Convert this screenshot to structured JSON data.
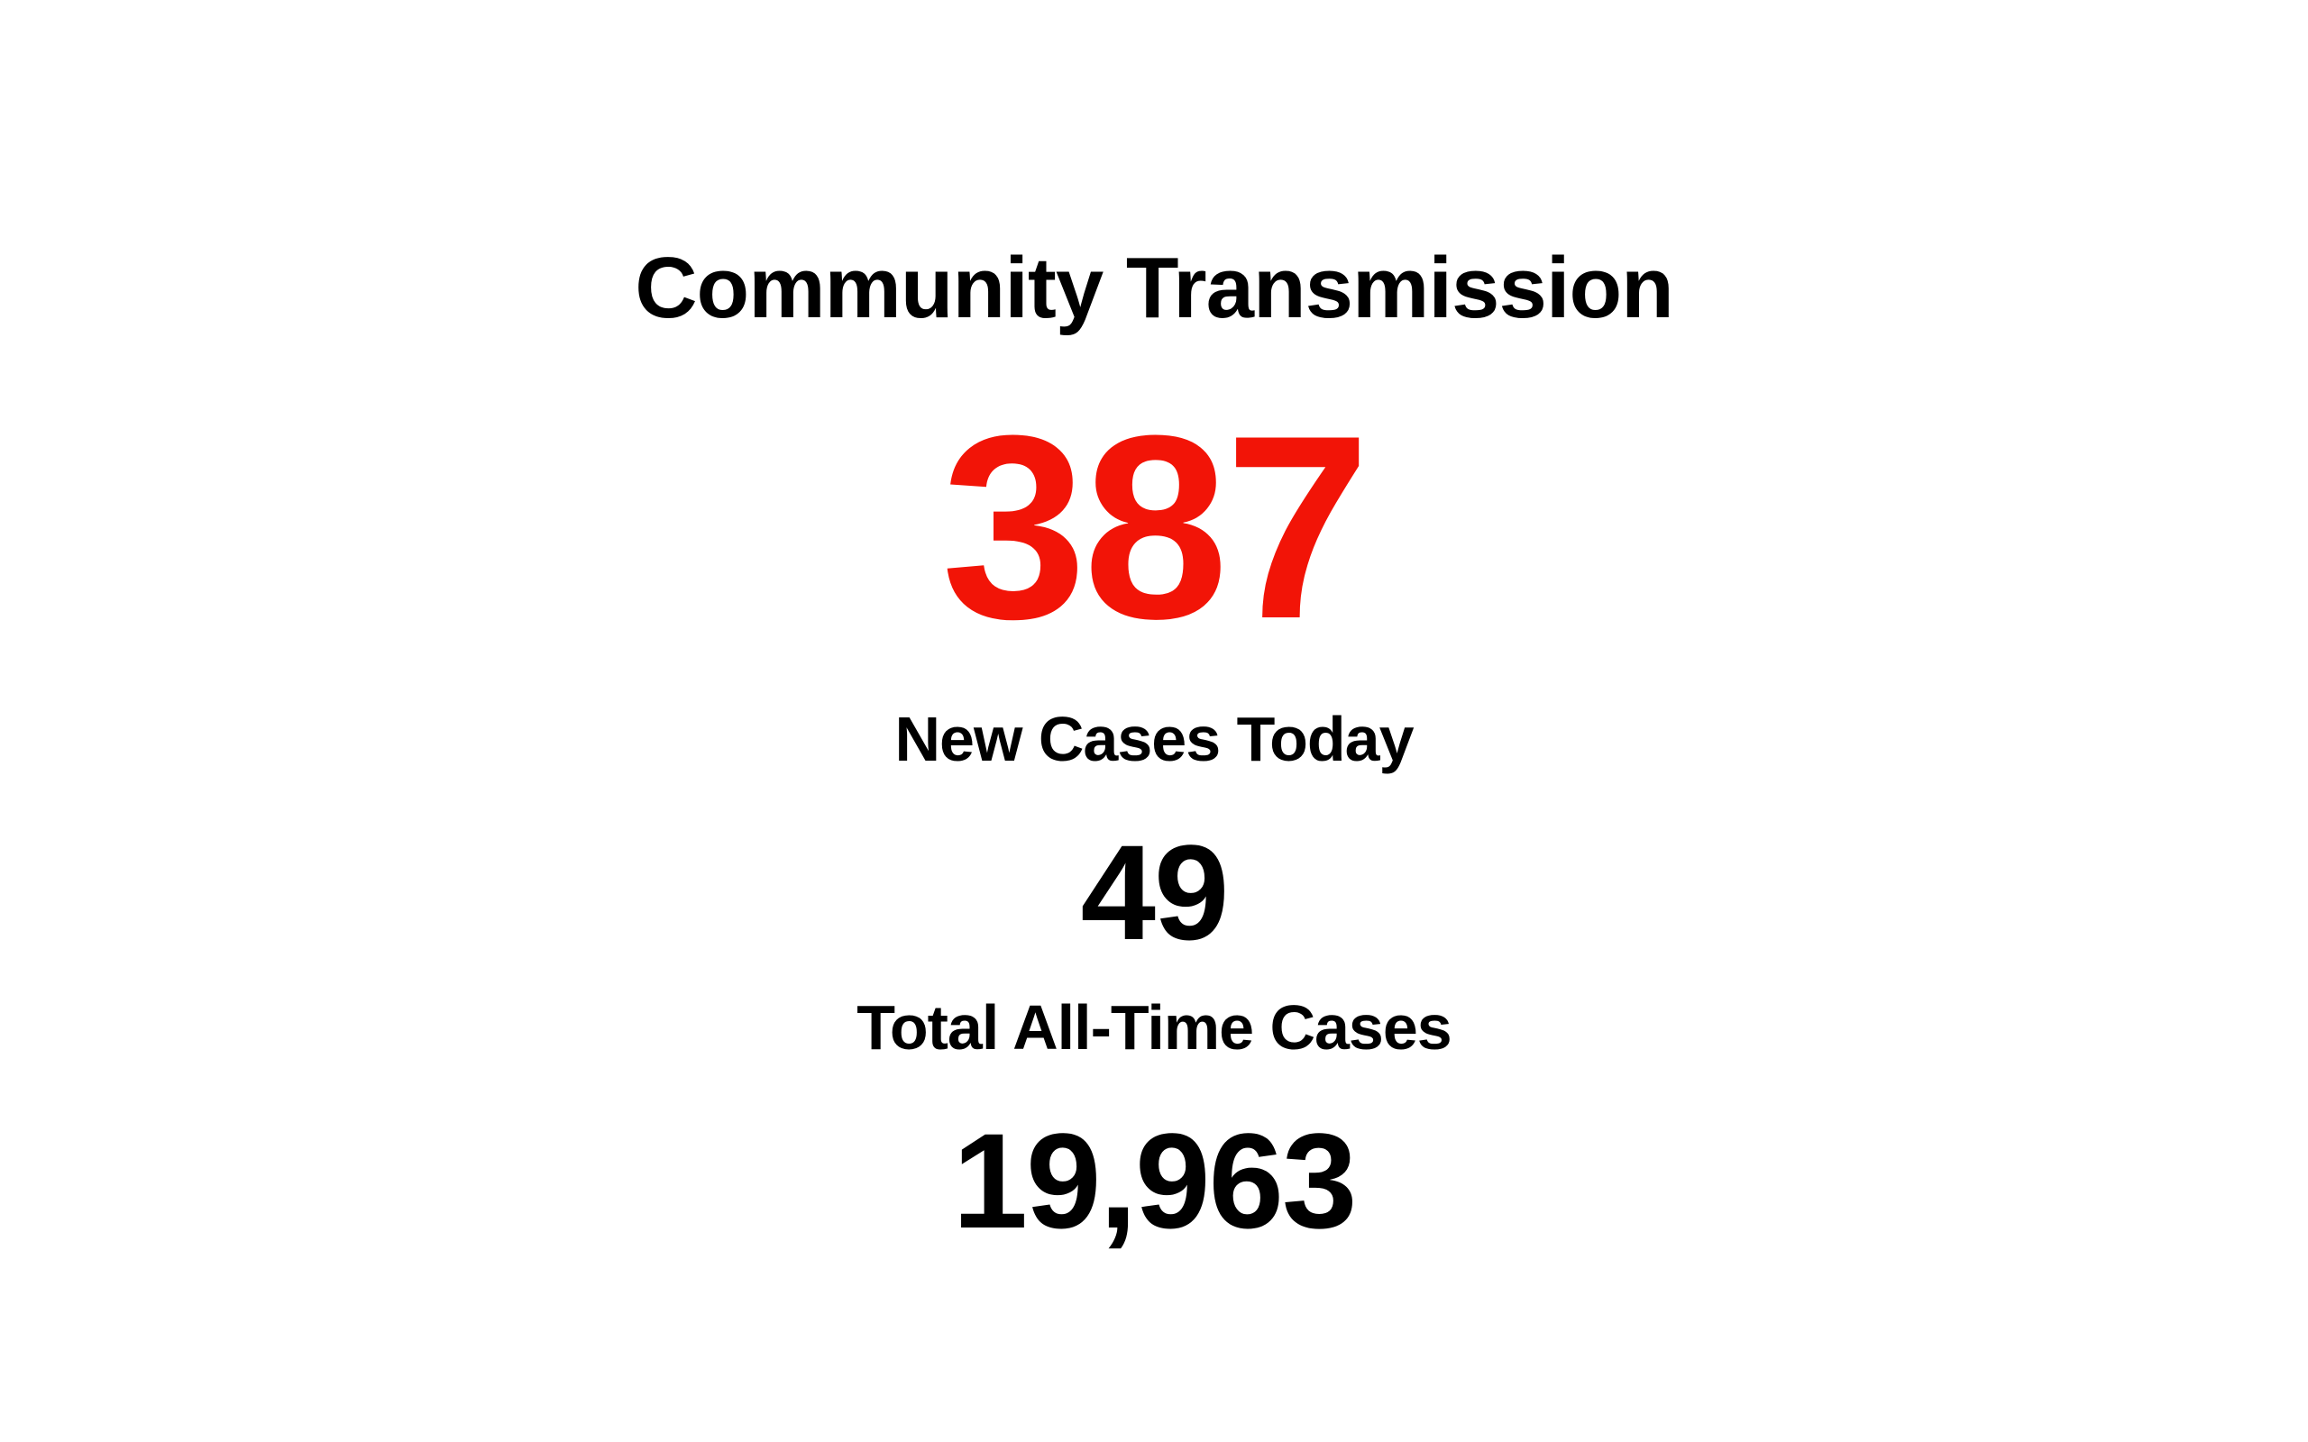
{
  "title": "Community Transmission",
  "community_transmission_count": "387",
  "new_cases": {
    "label": "New Cases Today",
    "value": "49"
  },
  "total_cases": {
    "label": "Total All-Time Cases",
    "value": "19,963"
  },
  "colors": {
    "background": "#ffffff",
    "text": "#000000",
    "highlight": "#f21407"
  }
}
